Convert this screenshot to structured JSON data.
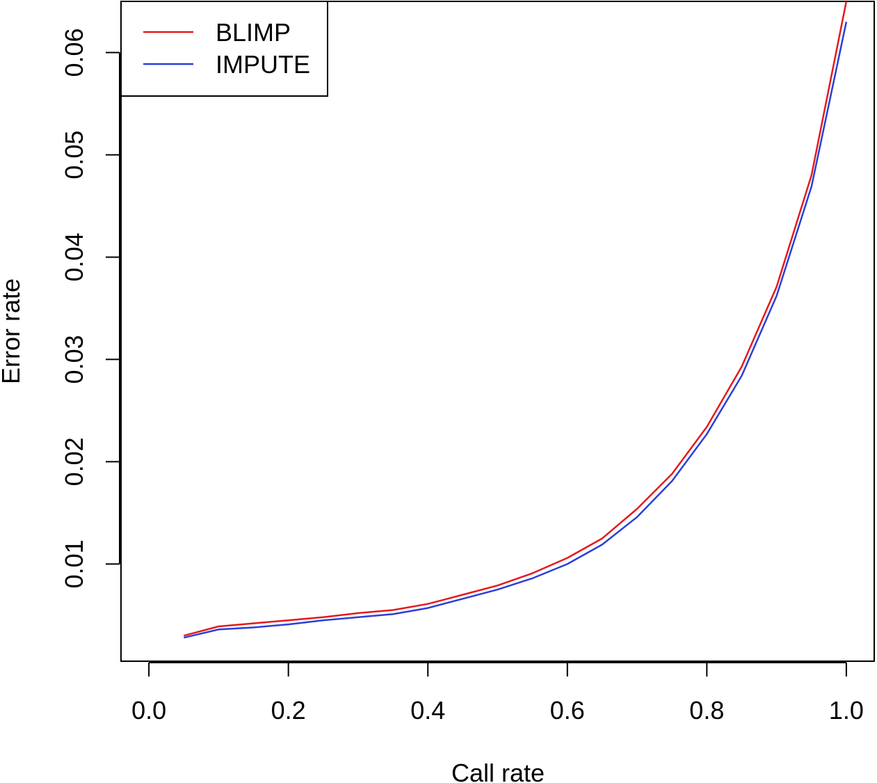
{
  "chart_data": {
    "type": "line",
    "title": "",
    "xlabel": "Call rate",
    "ylabel": "Error rate",
    "xlim": [
      -0.04,
      1.04
    ],
    "ylim": [
      0.0005,
      0.065
    ],
    "x_ticks": [
      0.0,
      0.2,
      0.4,
      0.6,
      0.8,
      1.0
    ],
    "x_tick_labels": [
      "0.0",
      "0.2",
      "0.4",
      "0.6",
      "0.8",
      "1.0"
    ],
    "y_ticks": [
      0.01,
      0.02,
      0.03,
      0.04,
      0.05,
      0.06
    ],
    "y_tick_labels": [
      "0.01",
      "0.02",
      "0.03",
      "0.04",
      "0.05",
      "0.06"
    ],
    "grid": false,
    "legend_position": "top-left",
    "x": [
      0.05,
      0.1,
      0.15,
      0.2,
      0.25,
      0.3,
      0.35,
      0.4,
      0.45,
      0.5,
      0.55,
      0.6,
      0.65,
      0.7,
      0.75,
      0.8,
      0.85,
      0.9,
      0.95,
      1.0
    ],
    "series": [
      {
        "name": "BLIMP",
        "color": "#e31a1c",
        "values": [
          0.003,
          0.0039,
          0.0042,
          0.0045,
          0.0048,
          0.0052,
          0.0055,
          0.0061,
          0.007,
          0.0079,
          0.0091,
          0.0106,
          0.0125,
          0.0154,
          0.0188,
          0.0234,
          0.0293,
          0.0371,
          0.048,
          0.065
        ]
      },
      {
        "name": "IMPUTE",
        "color": "#2b3fd6",
        "values": [
          0.0028,
          0.0036,
          0.0038,
          0.0041,
          0.0045,
          0.0048,
          0.0051,
          0.0057,
          0.0066,
          0.0075,
          0.0086,
          0.01,
          0.0119,
          0.0146,
          0.0181,
          0.0227,
          0.0284,
          0.0362,
          0.0469,
          0.063
        ]
      }
    ]
  }
}
